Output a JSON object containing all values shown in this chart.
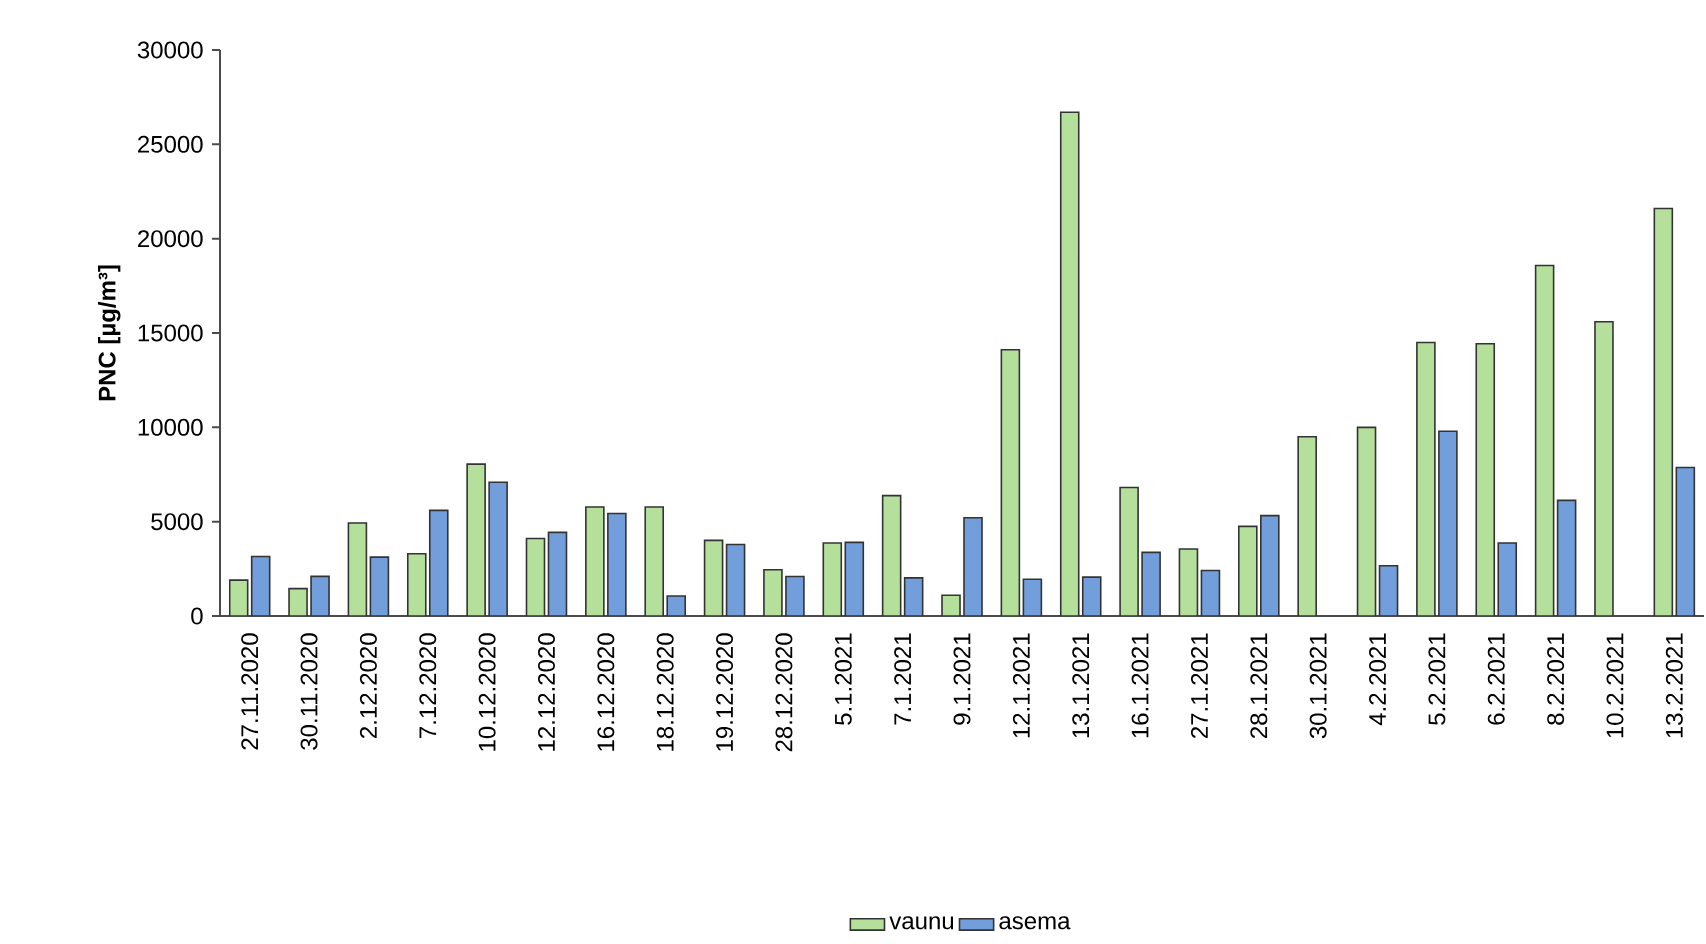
{
  "chart_data": {
    "type": "bar",
    "ylabel": "PNC [µg/m³]",
    "categories": [
      "27.11.2020",
      "30.11.2020",
      "2.12.2020",
      "7.12.2020",
      "10.12.2020",
      "12.12.2020",
      "16.12.2020",
      "18.12.2020",
      "19.12.2020",
      "28.12.2020",
      "5.1.2021",
      "7.1.2021",
      "9.1.2021",
      "12.1.2021",
      "13.1.2021",
      "16.1.2021",
      "27.1.2021",
      "28.1.2021",
      "30.1.2021",
      "4.2.2021",
      "5.2.2021",
      "6.2.2021",
      "8.2.2021",
      "10.2.2021",
      "13.2.2021"
    ],
    "series": [
      {
        "name": "vaunu",
        "color": "#b5e09c",
        "values": [
          1900,
          1450,
          4930,
          3300,
          8050,
          4110,
          5780,
          5780,
          4010,
          2450,
          3870,
          6380,
          1100,
          14110,
          26700,
          6810,
          3550,
          4750,
          9500,
          10000,
          14500,
          14430,
          18580,
          15600,
          21600
        ]
      },
      {
        "name": "asema",
        "color": "#729fdb",
        "values": [
          3150,
          2100,
          3120,
          5600,
          7090,
          4430,
          5430,
          1060,
          3790,
          2090,
          3900,
          2020,
          5210,
          1950,
          2060,
          3370,
          2410,
          5320,
          null,
          2660,
          9790,
          3870,
          6130,
          null,
          7870
        ]
      }
    ],
    "ylim": [
      0,
      30000
    ],
    "yticks": [
      0,
      5000,
      10000,
      15000,
      20000,
      25000,
      30000
    ],
    "grid": false,
    "legend": "bottom"
  }
}
